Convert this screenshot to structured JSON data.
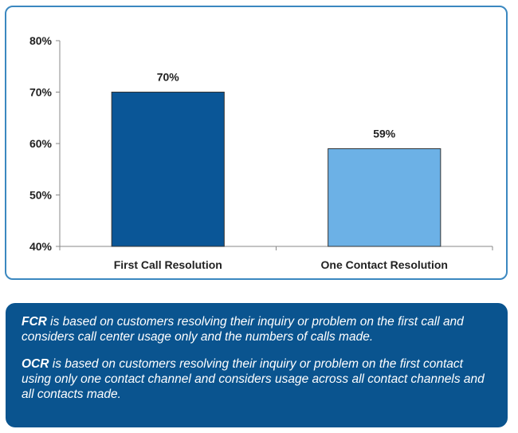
{
  "chart_data": {
    "type": "bar",
    "categories": [
      "First Call Resolution",
      "One Contact Resolution"
    ],
    "values": [
      70,
      59
    ],
    "value_labels": [
      "70%",
      "59%"
    ],
    "colors": [
      "#0a5697",
      "#6cb1e6"
    ],
    "ylim": [
      40,
      80
    ],
    "yticks": [
      40,
      50,
      60,
      70,
      80
    ],
    "ytick_labels": [
      "40%",
      "50%",
      "60%",
      "70%",
      "80%"
    ],
    "grid": false,
    "legend": false,
    "title": "",
    "xlabel": "",
    "ylabel": ""
  },
  "notes": [
    {
      "term": "FCR",
      "text": " is based on customers resolving their inquiry or problem on the first call and considers call center usage only and the numbers of calls made."
    },
    {
      "term": "OCR",
      "text": " is based on customers resolving their inquiry or problem on the first contact using only one contact channel and considers usage across all contact channels and all contacts made."
    }
  ]
}
